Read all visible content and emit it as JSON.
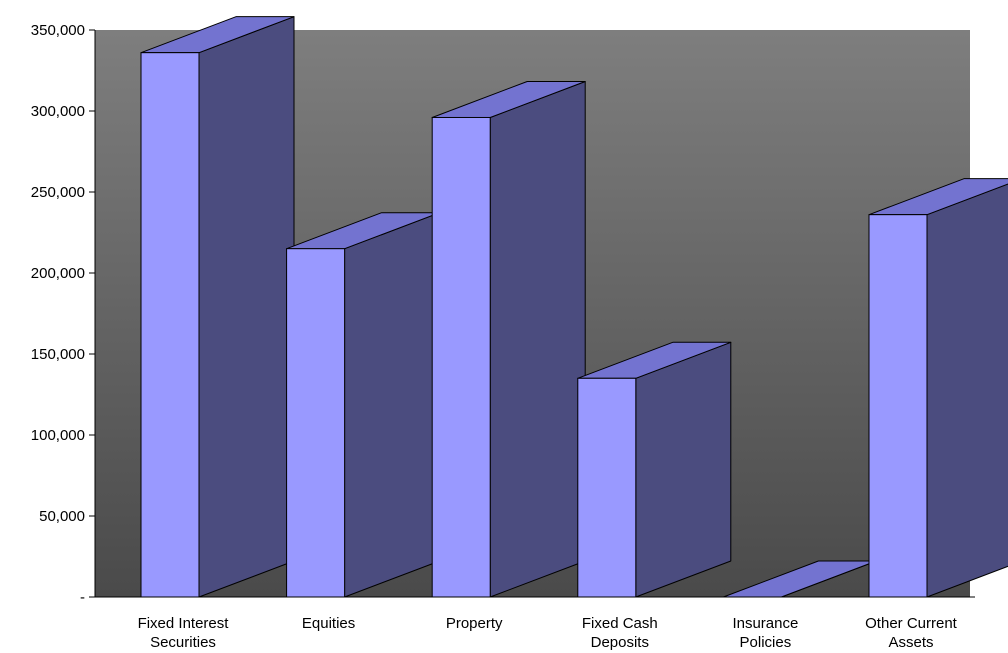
{
  "chart_data": {
    "type": "bar",
    "style": "3d-column",
    "categories": [
      [
        "Fixed Interest",
        "Securities"
      ],
      [
        "Equities"
      ],
      [
        "Property"
      ],
      [
        "Fixed Cash",
        "Deposits"
      ],
      [
        "Insurance",
        "Policies"
      ],
      [
        "Other Current",
        "Assets"
      ]
    ],
    "values": [
      336000,
      215000,
      296000,
      135000,
      0,
      236000
    ],
    "ylim": [
      0,
      350000
    ],
    "y_ticks": [
      {
        "value": 0,
        "label": "-"
      },
      {
        "value": 50000,
        "label": "50,000"
      },
      {
        "value": 100000,
        "label": "100,000"
      },
      {
        "value": 150000,
        "label": "150,000"
      },
      {
        "value": 200000,
        "label": "200,000"
      },
      {
        "value": 250000,
        "label": "250,000"
      },
      {
        "value": 300000,
        "label": "300,000"
      },
      {
        "value": 350000,
        "label": "350,000"
      }
    ],
    "grid": false,
    "legend": "none",
    "colors": {
      "front": "#9999FF",
      "side": "#4B4C7F",
      "top": "#7373D0",
      "wall_top": "#7E7E7E",
      "wall_bottom": "#4A4A4A",
      "outline": "#000000"
    }
  }
}
